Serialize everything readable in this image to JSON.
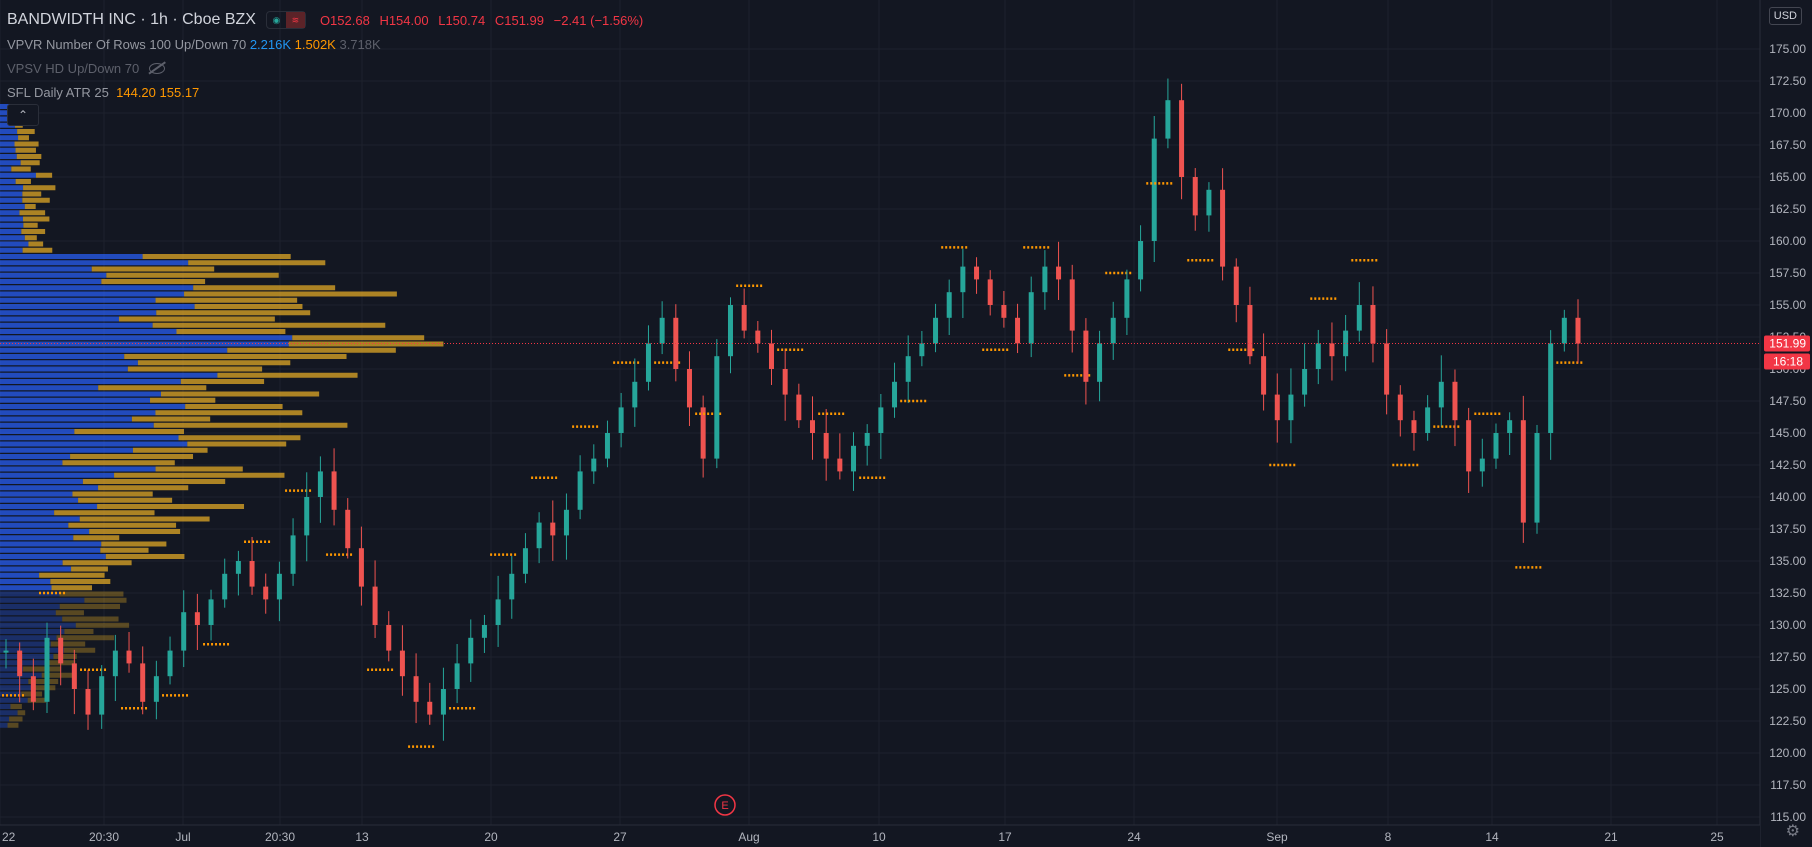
{
  "header": {
    "symbol": "BANDWIDTH INC · 1h · Cboe BZX",
    "ohlc": {
      "o": "O152.68",
      "h": "H154.00",
      "l": "L150.74",
      "c": "C151.99",
      "chg": "−2.41 (−1.56%)"
    }
  },
  "indicators": {
    "vpvr": {
      "name": "VPVR",
      "params": "Number Of Rows 100 Up/Down 70",
      "v1": "2.216K",
      "v2": "1.502K",
      "v3": "3.718K"
    },
    "vpsv": {
      "name": "VPSV HD Up/Down 70"
    },
    "sfl": {
      "name": "SFL Daily ATR",
      "param": "25",
      "v1": "144.20",
      "v2": "155.17"
    }
  },
  "currency": "USD",
  "price_axis": {
    "labels": [
      "175.00",
      "172.50",
      "170.00",
      "167.50",
      "165.00",
      "162.50",
      "160.00",
      "157.50",
      "155.00",
      "152.50",
      "150.00",
      "147.50",
      "145.00",
      "142.50",
      "140.00",
      "137.50",
      "135.00",
      "132.50",
      "130.00",
      "127.50",
      "125.00",
      "122.50",
      "120.00",
      "117.50",
      "115.00"
    ],
    "last_price": "151.99",
    "countdown": "16:18"
  },
  "time_axis": {
    "labels": [
      "22",
      "20:30",
      "Jul",
      "20:30",
      "13",
      "20",
      "27",
      "Aug",
      "10",
      "17",
      "24",
      "Sep",
      "8",
      "14",
      "21",
      "25"
    ]
  },
  "earnings_marker": "E",
  "colors": {
    "up": "#26a69a",
    "down": "#ef5350",
    "atr": "#ff9800",
    "vol_up": "#2962ff",
    "vol_down": "#e0a825",
    "bg": "#131722"
  },
  "chart_data": {
    "type": "candlestick",
    "title": "BANDWIDTH INC · 1h · Cboe BZX",
    "x_ticks": [
      "22",
      "20:30",
      "Jul",
      "20:30",
      "13",
      "20",
      "27",
      "Aug",
      "10",
      "17",
      "24",
      "Sep",
      "8",
      "14",
      "21",
      "25"
    ],
    "ylim": [
      115,
      175
    ],
    "last": 151.99,
    "series": [
      {
        "name": "price",
        "values": [
          128,
          126,
          124,
          129,
          127,
          125,
          123,
          126,
          128,
          127,
          124,
          126,
          128,
          131,
          130,
          132,
          134,
          135,
          133,
          132,
          134,
          137,
          140,
          142,
          139,
          136,
          133,
          130,
          128,
          126,
          124,
          123,
          125,
          127,
          129,
          130,
          132,
          134,
          136,
          138,
          137,
          139,
          142,
          143,
          145,
          147,
          149,
          152,
          154,
          150,
          147,
          143,
          151,
          155,
          153,
          152,
          150,
          148,
          146,
          145,
          143,
          142,
          144,
          145,
          147,
          149,
          151,
          152,
          154,
          156,
          158,
          157,
          155,
          154,
          152,
          156,
          158,
          157,
          153,
          149,
          152,
          154,
          157,
          160,
          168,
          171,
          165,
          162,
          164,
          158,
          155,
          151,
          148,
          146,
          148,
          150,
          152,
          151,
          153,
          155,
          152,
          148,
          146,
          145,
          147,
          149,
          146,
          142,
          143,
          145,
          146,
          138,
          145,
          152,
          154,
          151.99
        ]
      },
      {
        "name": "SFL Daily ATR",
        "values": [
          144.2,
          155.17
        ]
      }
    ],
    "volume_profile_rows": 100
  }
}
